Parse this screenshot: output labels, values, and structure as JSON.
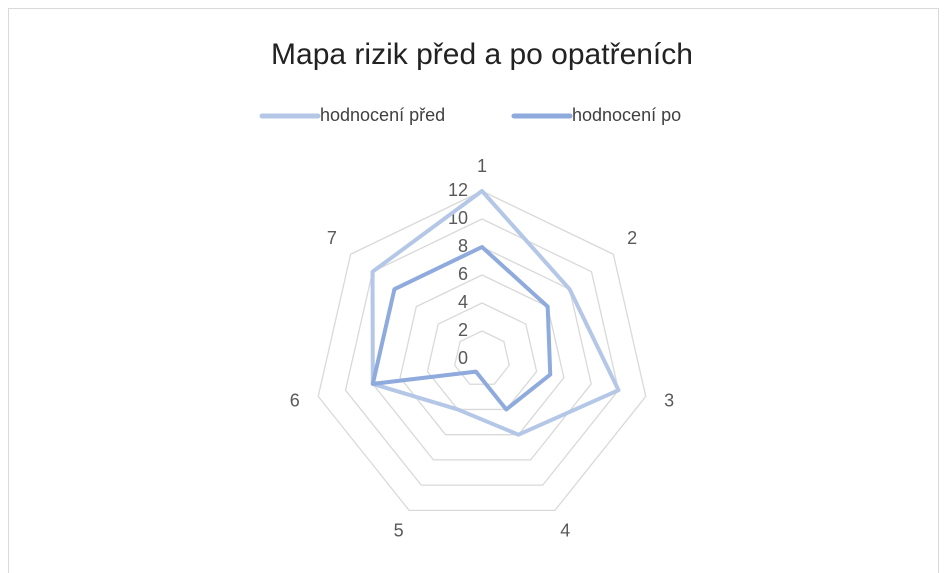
{
  "chart_data": {
    "type": "radar",
    "title": "Mapa rizik před a po opatřeních",
    "categories": [
      "1",
      "2",
      "3",
      "4",
      "5",
      "6",
      "7"
    ],
    "series": [
      {
        "name": "hodnocení před",
        "color": "#b4c7e7",
        "values": [
          12,
          8,
          10,
          6,
          4,
          8,
          10
        ]
      },
      {
        "name": "hodnocení po",
        "color": "#8faadc",
        "values": [
          8,
          6,
          5,
          4,
          1,
          8,
          8
        ]
      }
    ],
    "ylim": [
      0,
      12
    ],
    "yticks": [
      0,
      2,
      4,
      6,
      8,
      10,
      12
    ],
    "grid": true,
    "legend": "top"
  }
}
